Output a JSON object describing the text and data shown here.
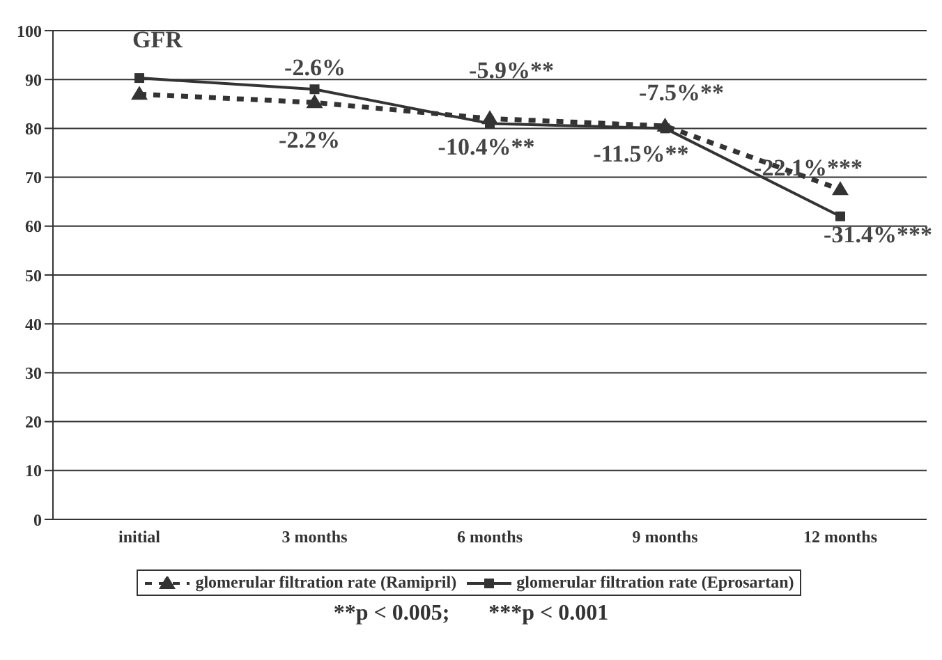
{
  "chart_data": {
    "type": "line",
    "categories": [
      "initial",
      "3 months",
      "6 months",
      "9 months",
      "12 months"
    ],
    "series": [
      {
        "name": "glomerular filtration rate (Ramipril)",
        "color": "#333333",
        "line_style": "dashed",
        "marker": "triangle",
        "values": [
          87,
          85.3,
          82,
          80.5,
          67.5
        ]
      },
      {
        "name": "glomerular filtration rate (Eprosartan)",
        "color": "#333333",
        "line_style": "solid",
        "marker": "square",
        "values": [
          90.3,
          88,
          81,
          80,
          62
        ]
      }
    ],
    "ylim": [
      0,
      100
    ],
    "yticks": [
      0,
      10,
      20,
      30,
      40,
      50,
      60,
      70,
      80,
      90,
      100
    ],
    "grid": "y",
    "legend": "bottom",
    "annotations": [
      "GFR",
      "-2.6%",
      "-2.2%",
      "-5.9%**",
      "-10.4%**",
      "-7.5%**",
      "-11.5%**",
      "-22.1%***",
      "-31.4%***",
      "**p < 0.005;       ***p < 0.001"
    ]
  }
}
